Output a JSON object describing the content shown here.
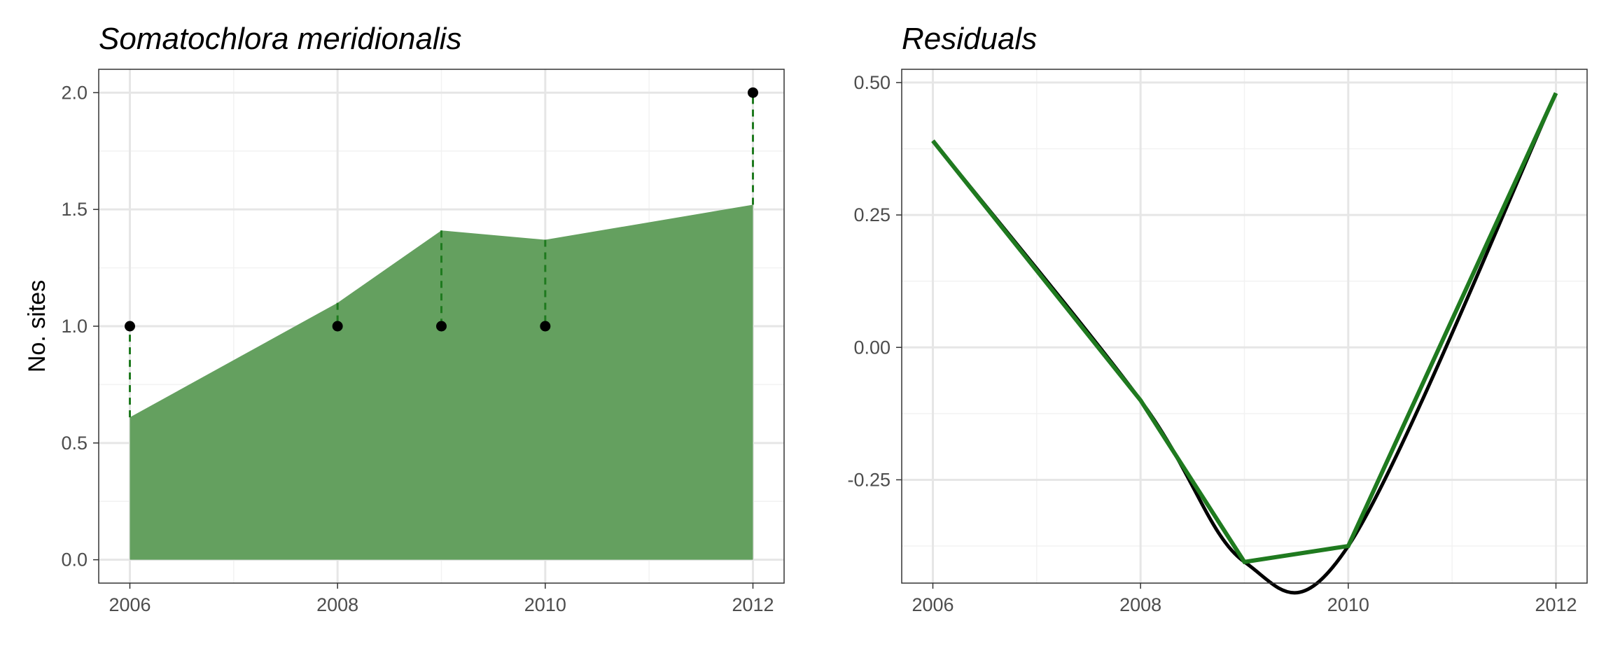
{
  "colors": {
    "fill": "#64a05f",
    "series_green": "#1f7a1f",
    "series_black": "#000000",
    "grid_major": "#e6e6e6",
    "grid_minor": "#f2f2f2",
    "panel_border": "#333333"
  },
  "chart_data": [
    {
      "type": "area",
      "title": "Somatochlora meridionalis",
      "xlabel": "",
      "ylabel": "No. sites",
      "xlim": [
        2005.7,
        2012.3
      ],
      "ylim": [
        -0.1,
        2.1
      ],
      "x_ticks": [
        "2006",
        "2008",
        "2010",
        "2012"
      ],
      "y_ticks": [
        "0.0",
        "0.5",
        "1.0",
        "1.5",
        "2.0"
      ],
      "grid": true,
      "area": {
        "x": [
          2006,
          2008,
          2009,
          2010,
          2012
        ],
        "y": [
          0.61,
          1.1,
          1.41,
          1.37,
          1.52
        ]
      },
      "points": {
        "x": [
          2006,
          2008,
          2009,
          2010,
          2012
        ],
        "y": [
          1.0,
          1.0,
          1.0,
          1.0,
          2.0
        ]
      }
    },
    {
      "type": "line",
      "title": "Residuals",
      "xlabel": "",
      "ylabel": "",
      "xlim": [
        2005.7,
        2012.3
      ],
      "ylim": [
        -0.445,
        0.525
      ],
      "x_ticks": [
        "2006",
        "2008",
        "2010",
        "2012"
      ],
      "y_ticks": [
        "-0.25",
        "0.00",
        "0.25",
        "0.50"
      ],
      "grid": true,
      "series": [
        {
          "style": "linear",
          "x": [
            2006,
            2008,
            2009,
            2010,
            2012
          ],
          "y": [
            0.39,
            -0.1,
            -0.405,
            -0.375,
            0.48
          ]
        },
        {
          "style": "smooth",
          "x": [
            2006,
            2008,
            2009,
            2010,
            2012
          ],
          "y": [
            0.39,
            -0.1,
            -0.405,
            -0.375,
            0.48
          ]
        }
      ]
    }
  ]
}
